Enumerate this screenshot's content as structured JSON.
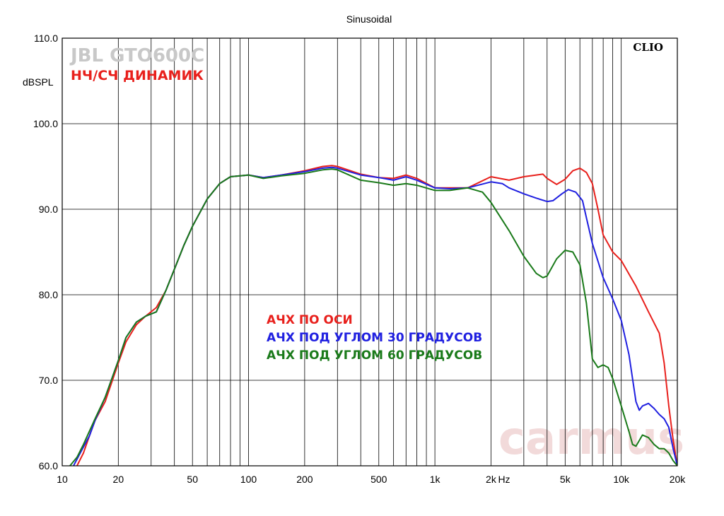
{
  "chart_data": {
    "type": "line",
    "title": "Sinusoidal",
    "ylabel": "dBSPL",
    "xlabel": "Hz",
    "x_scale": "log",
    "xlim": [
      10,
      20000
    ],
    "ylim": [
      60,
      110
    ],
    "y_ticks": [
      {
        "value": 110,
        "label": "110.0"
      },
      {
        "value": 100,
        "label": "100.0"
      },
      {
        "value": 90,
        "label": "90.0"
      },
      {
        "value": 80,
        "label": "80.0"
      },
      {
        "value": 70,
        "label": "70.0"
      },
      {
        "value": 60,
        "label": "60.0"
      }
    ],
    "x_ticks": [
      {
        "value": 10,
        "label": "10"
      },
      {
        "value": 20,
        "label": "20"
      },
      {
        "value": 50,
        "label": "50"
      },
      {
        "value": 100,
        "label": "100"
      },
      {
        "value": 200,
        "label": "200"
      },
      {
        "value": 500,
        "label": "500"
      },
      {
        "value": 1000,
        "label": "1k"
      },
      {
        "value": 2000,
        "label": "2k"
      },
      {
        "value": 5000,
        "label": "5k"
      },
      {
        "value": 10000,
        "label": "10k"
      },
      {
        "value": 20000,
        "label": "20k"
      }
    ],
    "grid": true,
    "legend_position": "center-left",
    "series": [
      {
        "name": "АЧХ ПО ОСИ",
        "color": "#e8201c",
        "points": [
          [
            12,
            60
          ],
          [
            13,
            61.5
          ],
          [
            14,
            63.5
          ],
          [
            15,
            65.3
          ],
          [
            17,
            67.5
          ],
          [
            20,
            72
          ],
          [
            22,
            74.5
          ],
          [
            25,
            76.5
          ],
          [
            28,
            77.5
          ],
          [
            32,
            78.5
          ],
          [
            36,
            80.5
          ],
          [
            40,
            83
          ],
          [
            45,
            85.8
          ],
          [
            50,
            88
          ],
          [
            60,
            91.2
          ],
          [
            70,
            93
          ],
          [
            80,
            93.8
          ],
          [
            100,
            94
          ],
          [
            120,
            93.7
          ],
          [
            150,
            94
          ],
          [
            200,
            94.5
          ],
          [
            250,
            95
          ],
          [
            280,
            95.1
          ],
          [
            300,
            95
          ],
          [
            400,
            94.1
          ],
          [
            500,
            93.7
          ],
          [
            600,
            93.6
          ],
          [
            700,
            94
          ],
          [
            800,
            93.6
          ],
          [
            1000,
            92.5
          ],
          [
            1200,
            92.5
          ],
          [
            1500,
            92.5
          ],
          [
            2000,
            93.8
          ],
          [
            2500,
            93.4
          ],
          [
            3000,
            93.8
          ],
          [
            3500,
            94
          ],
          [
            3800,
            94.1
          ],
          [
            4000,
            93.6
          ],
          [
            4500,
            92.9
          ],
          [
            5000,
            93.5
          ],
          [
            5500,
            94.5
          ],
          [
            6000,
            94.8
          ],
          [
            6500,
            94.3
          ],
          [
            7000,
            93
          ],
          [
            7500,
            90
          ],
          [
            8000,
            87
          ],
          [
            9000,
            85
          ],
          [
            10000,
            84
          ],
          [
            12000,
            81
          ],
          [
            14000,
            78
          ],
          [
            16000,
            75.5
          ],
          [
            17000,
            72
          ],
          [
            18000,
            67
          ],
          [
            19000,
            63
          ],
          [
            20000,
            60
          ]
        ]
      },
      {
        "name": "АЧХ ПОД УГЛОМ 30 ГРАДУСОВ",
        "color": "#2020e0",
        "points": [
          [
            11.5,
            60
          ],
          [
            12.5,
            61.5
          ],
          [
            14,
            63.5
          ],
          [
            15,
            65.3
          ],
          [
            17,
            68
          ],
          [
            20,
            72.3
          ],
          [
            22,
            75
          ],
          [
            25,
            76.8
          ],
          [
            28,
            77.5
          ],
          [
            32,
            78
          ],
          [
            36,
            80.5
          ],
          [
            40,
            83
          ],
          [
            45,
            85.8
          ],
          [
            50,
            88
          ],
          [
            60,
            91.2
          ],
          [
            70,
            93
          ],
          [
            80,
            93.8
          ],
          [
            100,
            94
          ],
          [
            120,
            93.7
          ],
          [
            150,
            94
          ],
          [
            200,
            94.4
          ],
          [
            250,
            94.8
          ],
          [
            280,
            94.9
          ],
          [
            300,
            94.8
          ],
          [
            400,
            94
          ],
          [
            500,
            93.7
          ],
          [
            600,
            93.4
          ],
          [
            700,
            93.8
          ],
          [
            800,
            93.4
          ],
          [
            1000,
            92.5
          ],
          [
            1200,
            92.4
          ],
          [
            1500,
            92.5
          ],
          [
            2000,
            93.2
          ],
          [
            2300,
            93
          ],
          [
            2500,
            92.5
          ],
          [
            3000,
            91.8
          ],
          [
            3500,
            91.3
          ],
          [
            4000,
            90.9
          ],
          [
            4300,
            91
          ],
          [
            4800,
            91.8
          ],
          [
            5200,
            92.3
          ],
          [
            5700,
            92
          ],
          [
            6200,
            91
          ],
          [
            6500,
            89
          ],
          [
            7000,
            86
          ],
          [
            8000,
            82
          ],
          [
            9000,
            79.5
          ],
          [
            10000,
            77
          ],
          [
            11000,
            73
          ],
          [
            12000,
            67.5
          ],
          [
            12500,
            66.5
          ],
          [
            13000,
            67
          ],
          [
            14000,
            67.3
          ],
          [
            15000,
            66.7
          ],
          [
            16000,
            66
          ],
          [
            17000,
            65.5
          ],
          [
            18000,
            64.5
          ],
          [
            19000,
            62
          ],
          [
            20000,
            60
          ]
        ]
      },
      {
        "name": "АЧХ ПОД УГЛОМ 60 ГРАДУСОВ",
        "color": "#1a7a1a",
        "points": [
          [
            11,
            60
          ],
          [
            12,
            61
          ],
          [
            13,
            62.5
          ],
          [
            15,
            65.5
          ],
          [
            17,
            68
          ],
          [
            20,
            72.3
          ],
          [
            22,
            75
          ],
          [
            25,
            76.8
          ],
          [
            28,
            77.5
          ],
          [
            32,
            78
          ],
          [
            36,
            80.5
          ],
          [
            40,
            83
          ],
          [
            45,
            85.8
          ],
          [
            50,
            88
          ],
          [
            60,
            91.2
          ],
          [
            70,
            93
          ],
          [
            80,
            93.8
          ],
          [
            100,
            94
          ],
          [
            120,
            93.6
          ],
          [
            150,
            93.9
          ],
          [
            200,
            94.2
          ],
          [
            250,
            94.6
          ],
          [
            280,
            94.7
          ],
          [
            300,
            94.6
          ],
          [
            400,
            93.4
          ],
          [
            500,
            93.1
          ],
          [
            600,
            92.8
          ],
          [
            700,
            93
          ],
          [
            800,
            92.8
          ],
          [
            1000,
            92.2
          ],
          [
            1200,
            92.2
          ],
          [
            1500,
            92.5
          ],
          [
            1800,
            92
          ],
          [
            2000,
            90.8
          ],
          [
            2500,
            87.5
          ],
          [
            3000,
            84.5
          ],
          [
            3500,
            82.5
          ],
          [
            3800,
            82
          ],
          [
            4000,
            82.2
          ],
          [
            4500,
            84.2
          ],
          [
            5000,
            85.2
          ],
          [
            5500,
            85
          ],
          [
            6000,
            83.5
          ],
          [
            6500,
            79
          ],
          [
            7000,
            72.5
          ],
          [
            7500,
            71.5
          ],
          [
            8000,
            71.8
          ],
          [
            8500,
            71.5
          ],
          [
            9000,
            70.2
          ],
          [
            10000,
            67
          ],
          [
            11000,
            64
          ],
          [
            11500,
            62.5
          ],
          [
            12000,
            62.3
          ],
          [
            13000,
            63.6
          ],
          [
            14000,
            63.3
          ],
          [
            15000,
            62.5
          ],
          [
            16000,
            62
          ],
          [
            17000,
            62
          ],
          [
            18000,
            61.5
          ],
          [
            19000,
            60.6
          ],
          [
            20000,
            60
          ]
        ]
      }
    ]
  },
  "annotations": {
    "model": "JBL GTO600C",
    "subtitle": "НЧ/СЧ ДИНАМИК",
    "brand_mark": "CLIO",
    "watermark": "carmus"
  }
}
